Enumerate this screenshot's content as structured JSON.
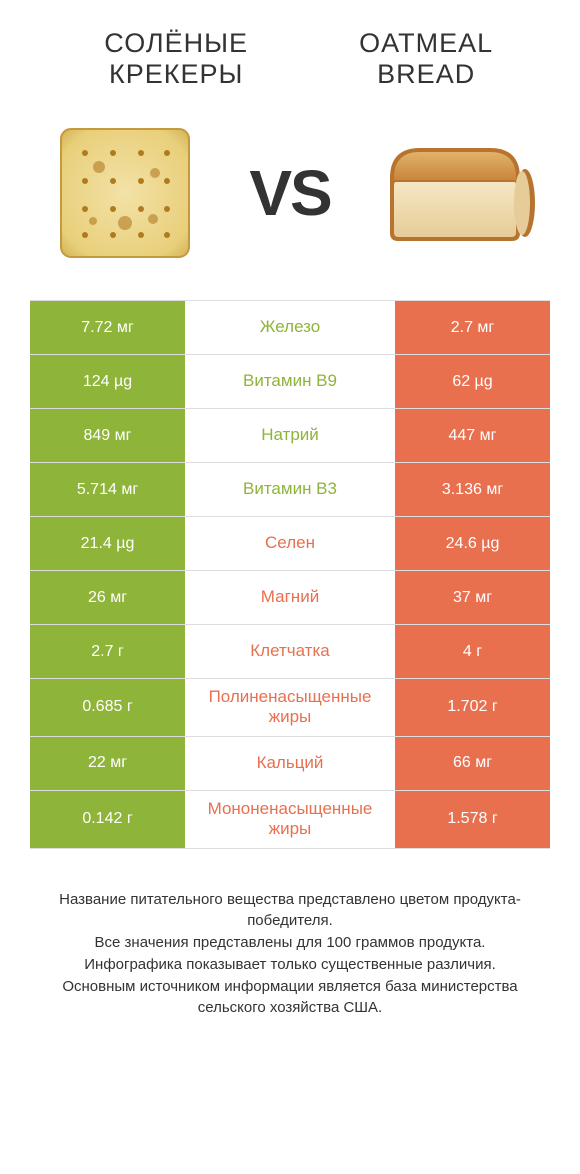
{
  "colors": {
    "green": "#8fb43a",
    "orange": "#e8704f",
    "text": "#333333",
    "bg": "#ffffff",
    "divider": "#dddddd"
  },
  "typography": {
    "title_fontsize": 27,
    "vs_fontsize": 64,
    "cell_fontsize": 16,
    "nutrient_fontsize": 17,
    "footer_fontsize": 15
  },
  "header": {
    "left_title": "СОЛЁНЫЕ\nКРЕКЕРЫ",
    "right_title": "OATMEAL\nBREAD",
    "vs_v": "V",
    "vs_s": "S"
  },
  "table": {
    "left_color": "#8fb43a",
    "right_color": "#e8704f",
    "rows": [
      {
        "left": "7.72 мг",
        "name": "Железо",
        "right": "2.7 мг",
        "winner": "left"
      },
      {
        "left": "124 µg",
        "name": "Витамин B9",
        "right": "62 µg",
        "winner": "left"
      },
      {
        "left": "849 мг",
        "name": "Натрий",
        "right": "447 мг",
        "winner": "left"
      },
      {
        "left": "5.714 мг",
        "name": "Витамин B3",
        "right": "3.136 мг",
        "winner": "left"
      },
      {
        "left": "21.4 µg",
        "name": "Селен",
        "right": "24.6 µg",
        "winner": "right"
      },
      {
        "left": "26 мг",
        "name": "Магний",
        "right": "37 мг",
        "winner": "right"
      },
      {
        "left": "2.7 г",
        "name": "Клетчатка",
        "right": "4 г",
        "winner": "right"
      },
      {
        "left": "0.685 г",
        "name": "Полиненасыщенные жиры",
        "right": "1.702 г",
        "winner": "right"
      },
      {
        "left": "22 мг",
        "name": "Кальций",
        "right": "66 мг",
        "winner": "right"
      },
      {
        "left": "0.142 г",
        "name": "Мононенасыщенные жиры",
        "right": "1.578 г",
        "winner": "right"
      }
    ]
  },
  "footer": {
    "line1": "Название питательного вещества представлено цветом продукта-победителя.",
    "line2": "Все значения представлены для 100 граммов продукта.",
    "line3": "Инфографика показывает только существенные различия.",
    "line4": "Основным источником информации является база министерства сельского хозяйства США."
  }
}
